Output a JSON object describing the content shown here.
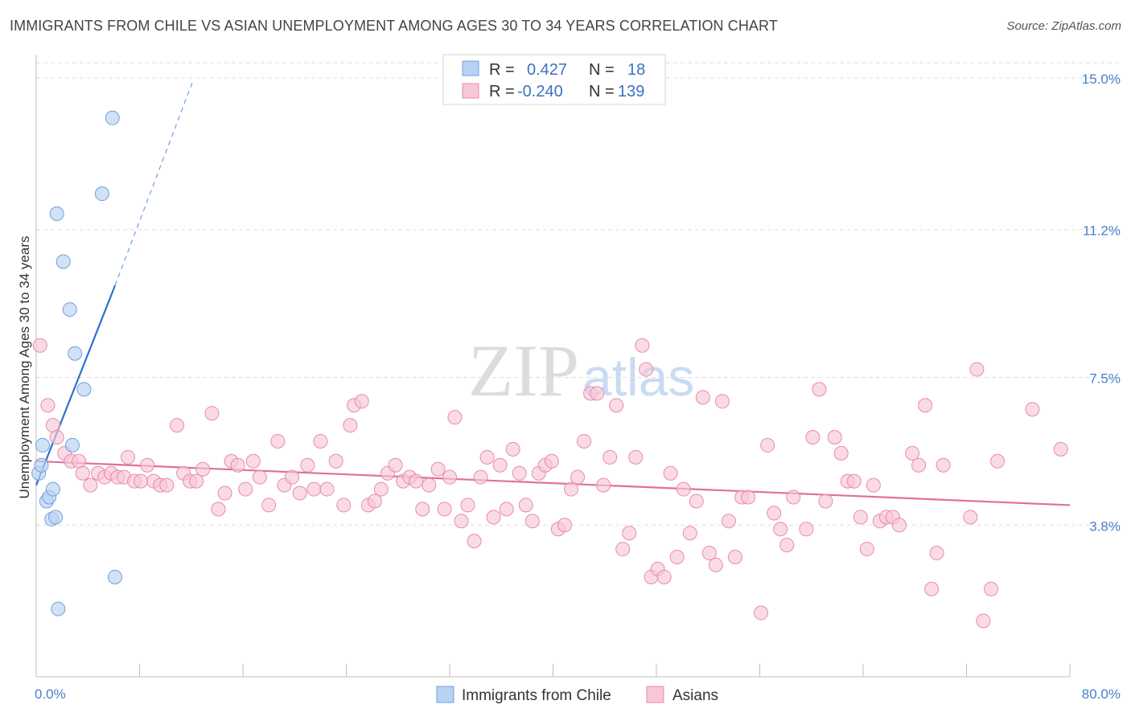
{
  "title": "IMMIGRANTS FROM CHILE VS ASIAN UNEMPLOYMENT AMONG AGES 30 TO 34 YEARS CORRELATION CHART",
  "source": "Source: ZipAtlas.com",
  "watermark": {
    "zip": "ZIP",
    "atlas": "atlas"
  },
  "colors": {
    "blue_fill": "#b8d2f3",
    "blue_stroke": "#6f9fe0",
    "blue_line": "#2f6fce",
    "pink_fill": "#f8c7d7",
    "pink_stroke": "#e98aab",
    "pink_line": "#e0709a",
    "value_text": "#3a72c4",
    "grid": "#dddddd"
  },
  "legend": {
    "r_label": "R =",
    "n_label": "N =",
    "rows": [
      {
        "series": "Immigrants from Chile",
        "r": "0.427",
        "n": "18"
      },
      {
        "series": "Asians",
        "r": "-0.240",
        "n": "139"
      }
    ]
  },
  "chart_data": {
    "type": "scatter",
    "title": "IMMIGRANTS FROM CHILE VS ASIAN UNEMPLOYMENT AMONG AGES 30 TO 34 YEARS CORRELATION CHART",
    "xlabel": "",
    "ylabel": "Unemployment Among Ages 30 to 34 years",
    "xlim": [
      0,
      80
    ],
    "ylim": [
      0,
      15
    ],
    "x_tick_labels": [
      {
        "value": 0,
        "label": "0.0%"
      },
      {
        "value": 80,
        "label": "80.0%"
      }
    ],
    "y_tick_labels": [
      {
        "value": 3.8,
        "label": "3.8%"
      },
      {
        "value": 7.5,
        "label": "7.5%"
      },
      {
        "value": 11.2,
        "label": "11.2%"
      },
      {
        "value": 15.0,
        "label": "15.0%"
      }
    ],
    "grid": true,
    "legend_position": "top-center",
    "series": [
      {
        "name": "Immigrants from Chile",
        "color": "#6f9fe0",
        "r": 0.427,
        "n": 18,
        "trend": {
          "x": [
            0,
            6.1
          ],
          "y": [
            4.8,
            9.8
          ],
          "dashed_to": [
            12.1,
            14.9
          ]
        },
        "points": [
          [
            0.2,
            5.1
          ],
          [
            0.4,
            5.3
          ],
          [
            0.5,
            5.8
          ],
          [
            0.8,
            4.4
          ],
          [
            1.0,
            4.5
          ],
          [
            1.2,
            3.95
          ],
          [
            1.3,
            4.7
          ],
          [
            1.5,
            4.0
          ],
          [
            1.6,
            11.6
          ],
          [
            1.7,
            1.7
          ],
          [
            2.1,
            10.4
          ],
          [
            2.6,
            9.2
          ],
          [
            2.8,
            5.8
          ],
          [
            3.0,
            8.1
          ],
          [
            3.7,
            7.2
          ],
          [
            5.1,
            12.1
          ],
          [
            5.9,
            14.0
          ],
          [
            6.1,
            2.5
          ]
        ]
      },
      {
        "name": "Asians",
        "color": "#e98aab",
        "r": -0.24,
        "n": 139,
        "trend": {
          "x": [
            0,
            80
          ],
          "y": [
            5.4,
            4.3
          ]
        },
        "points": [
          [
            0.3,
            8.3
          ],
          [
            0.9,
            6.8
          ],
          [
            1.3,
            6.3
          ],
          [
            1.6,
            6.0
          ],
          [
            2.2,
            5.6
          ],
          [
            2.7,
            5.4
          ],
          [
            3.3,
            5.4
          ],
          [
            3.6,
            5.1
          ],
          [
            4.2,
            4.8
          ],
          [
            4.8,
            5.1
          ],
          [
            5.3,
            5.0
          ],
          [
            5.8,
            5.1
          ],
          [
            6.3,
            5.0
          ],
          [
            6.8,
            5.0
          ],
          [
            7.1,
            5.5
          ],
          [
            7.6,
            4.9
          ],
          [
            8.1,
            4.9
          ],
          [
            8.6,
            5.3
          ],
          [
            9.1,
            4.9
          ],
          [
            9.6,
            4.8
          ],
          [
            10.1,
            4.8
          ],
          [
            10.9,
            6.3
          ],
          [
            11.4,
            5.1
          ],
          [
            11.9,
            4.9
          ],
          [
            12.4,
            4.9
          ],
          [
            12.9,
            5.2
          ],
          [
            13.6,
            6.6
          ],
          [
            14.1,
            4.2
          ],
          [
            14.6,
            4.6
          ],
          [
            15.1,
            5.4
          ],
          [
            15.6,
            5.3
          ],
          [
            16.2,
            4.7
          ],
          [
            16.8,
            5.4
          ],
          [
            17.3,
            5.0
          ],
          [
            18.0,
            4.3
          ],
          [
            18.7,
            5.9
          ],
          [
            19.2,
            4.8
          ],
          [
            19.8,
            5.0
          ],
          [
            20.4,
            4.6
          ],
          [
            21.0,
            5.3
          ],
          [
            21.5,
            4.7
          ],
          [
            22.0,
            5.9
          ],
          [
            22.5,
            4.7
          ],
          [
            23.2,
            5.4
          ],
          [
            23.8,
            4.3
          ],
          [
            24.3,
            6.3
          ],
          [
            24.6,
            6.8
          ],
          [
            25.2,
            6.9
          ],
          [
            25.7,
            4.3
          ],
          [
            26.2,
            4.4
          ],
          [
            26.7,
            4.7
          ],
          [
            27.2,
            5.1
          ],
          [
            27.8,
            5.3
          ],
          [
            28.4,
            4.9
          ],
          [
            28.9,
            5.0
          ],
          [
            29.4,
            4.9
          ],
          [
            29.9,
            4.2
          ],
          [
            30.4,
            4.8
          ],
          [
            31.1,
            5.2
          ],
          [
            31.6,
            4.2
          ],
          [
            32.0,
            5.0
          ],
          [
            32.4,
            6.5
          ],
          [
            32.9,
            3.9
          ],
          [
            33.4,
            4.3
          ],
          [
            33.9,
            3.4
          ],
          [
            34.4,
            5.0
          ],
          [
            34.9,
            5.5
          ],
          [
            35.4,
            4.0
          ],
          [
            35.9,
            5.3
          ],
          [
            36.4,
            4.2
          ],
          [
            36.9,
            5.7
          ],
          [
            37.4,
            5.1
          ],
          [
            37.9,
            4.3
          ],
          [
            38.4,
            3.9
          ],
          [
            38.9,
            5.1
          ],
          [
            39.4,
            5.3
          ],
          [
            39.9,
            5.4
          ],
          [
            40.4,
            3.7
          ],
          [
            40.9,
            3.8
          ],
          [
            41.4,
            4.7
          ],
          [
            41.9,
            5.0
          ],
          [
            42.4,
            5.9
          ],
          [
            42.9,
            7.1
          ],
          [
            43.4,
            7.1
          ],
          [
            43.9,
            4.8
          ],
          [
            44.4,
            5.5
          ],
          [
            44.9,
            6.8
          ],
          [
            45.4,
            3.2
          ],
          [
            45.9,
            3.6
          ],
          [
            46.4,
            5.5
          ],
          [
            46.9,
            8.3
          ],
          [
            47.2,
            7.7
          ],
          [
            47.6,
            2.5
          ],
          [
            48.1,
            2.7
          ],
          [
            48.6,
            2.5
          ],
          [
            49.1,
            5.1
          ],
          [
            49.6,
            3.0
          ],
          [
            50.1,
            4.7
          ],
          [
            50.6,
            3.6
          ],
          [
            51.1,
            4.4
          ],
          [
            51.6,
            7.0
          ],
          [
            52.1,
            3.1
          ],
          [
            52.6,
            2.8
          ],
          [
            53.1,
            6.9
          ],
          [
            53.6,
            3.9
          ],
          [
            54.1,
            3.0
          ],
          [
            54.6,
            4.5
          ],
          [
            55.1,
            4.5
          ],
          [
            56.1,
            1.6
          ],
          [
            56.6,
            5.8
          ],
          [
            57.1,
            4.1
          ],
          [
            57.6,
            3.7
          ],
          [
            58.1,
            3.3
          ],
          [
            58.6,
            4.5
          ],
          [
            59.6,
            3.7
          ],
          [
            60.1,
            6.0
          ],
          [
            60.6,
            7.2
          ],
          [
            61.1,
            4.4
          ],
          [
            61.8,
            6.0
          ],
          [
            62.3,
            5.6
          ],
          [
            62.8,
            4.9
          ],
          [
            63.3,
            4.9
          ],
          [
            63.8,
            4.0
          ],
          [
            64.3,
            3.2
          ],
          [
            64.8,
            4.8
          ],
          [
            65.3,
            3.9
          ],
          [
            65.8,
            4.0
          ],
          [
            66.3,
            4.0
          ],
          [
            66.8,
            3.8
          ],
          [
            67.8,
            5.6
          ],
          [
            68.3,
            5.3
          ],
          [
            68.8,
            6.8
          ],
          [
            69.3,
            2.2
          ],
          [
            69.7,
            3.1
          ],
          [
            70.2,
            5.3
          ],
          [
            72.3,
            4.0
          ],
          [
            72.8,
            7.7
          ],
          [
            73.3,
            1.4
          ],
          [
            73.9,
            2.2
          ],
          [
            74.4,
            5.4
          ],
          [
            77.1,
            6.7
          ],
          [
            79.3,
            5.7
          ]
        ]
      }
    ]
  }
}
